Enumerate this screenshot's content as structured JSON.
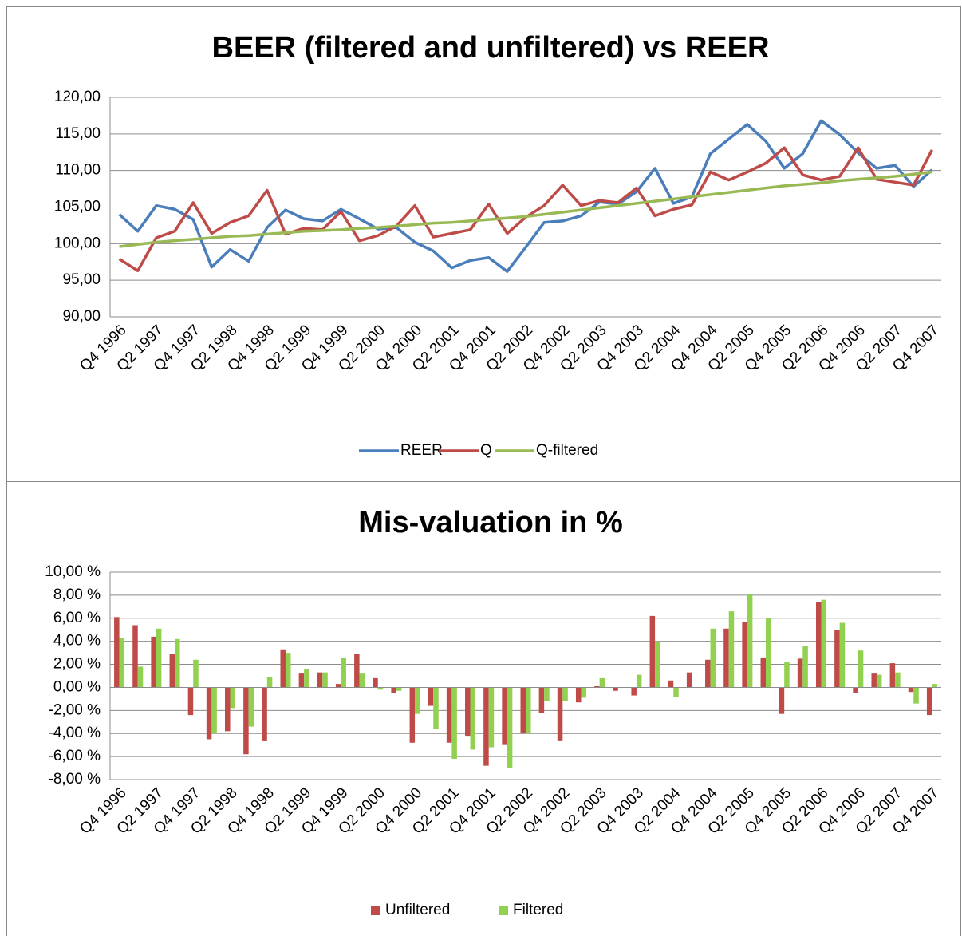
{
  "chart_data": [
    {
      "type": "line",
      "title": "BEER (filtered and unfiltered) vs REER",
      "categories": [
        "Q4 1996",
        null,
        "Q2 1997",
        null,
        "Q4 1997",
        null,
        "Q2 1998",
        null,
        "Q4 1998",
        null,
        "Q2 1999",
        null,
        "Q4 1999",
        null,
        "Q2 2000",
        null,
        "Q4 2000",
        null,
        "Q2 2001",
        null,
        "Q4 2001",
        null,
        "Q2 2002",
        null,
        "Q4 2002",
        null,
        "Q2 2003",
        null,
        "Q4 2003",
        null,
        "Q2 2004",
        null,
        "Q4 2004",
        null,
        "Q2 2005",
        null,
        "Q4 2005",
        null,
        "Q2 2006",
        null,
        "Q4 2006",
        null,
        "Q2 2007",
        null,
        "Q4 2007"
      ],
      "series": [
        {
          "name": "REER",
          "color": "#4a7ebb",
          "values": [
            104,
            101.7,
            105.2,
            104.7,
            103.3,
            96.8,
            99.2,
            97.6,
            102.2,
            104.6,
            103.4,
            103.1,
            104.7,
            103.4,
            102,
            102.2,
            100.2,
            99,
            96.7,
            97.7,
            98.1,
            96.2,
            99.5,
            102.9,
            103.1,
            103.8,
            105.7,
            105.4,
            107.1,
            110.3,
            105.5,
            106.4,
            112.3,
            114.3,
            116.3,
            114,
            110.3,
            112.3,
            116.8,
            114.9,
            112.4,
            110.3,
            110.7,
            107.8,
            110.1
          ]
        },
        {
          "name": "Q",
          "color": "#be4b48",
          "values": [
            97.9,
            96.3,
            100.8,
            101.7,
            105.6,
            101.4,
            102.9,
            103.8,
            107.3,
            101.3,
            102.1,
            101.9,
            104.4,
            100.4,
            101.1,
            102.4,
            105.2,
            100.9,
            101.4,
            101.9,
            105.4,
            101.4,
            103.6,
            105.2,
            108,
            105.2,
            105.9,
            105.6,
            107.6,
            103.8,
            104.7,
            105.3,
            109.8,
            108.7,
            109.8,
            111,
            113.1,
            109.4,
            108.7,
            109.2,
            113.1,
            108.8,
            108.4,
            108,
            112.8
          ]
        },
        {
          "name": "Q-filtered",
          "color": "#98b954",
          "values": [
            99.6,
            99.9,
            100.2,
            100.4,
            100.6,
            100.8,
            101,
            101.1,
            101.3,
            101.5,
            101.7,
            101.8,
            101.9,
            102.1,
            102.2,
            102.4,
            102.6,
            102.8,
            102.9,
            103.1,
            103.3,
            103.5,
            103.7,
            104,
            104.3,
            104.6,
            104.9,
            105.2,
            105.5,
            105.8,
            106.1,
            106.4,
            106.7,
            107,
            107.3,
            107.6,
            107.9,
            108.1,
            108.3,
            108.6,
            108.8,
            109,
            109.2,
            109.5,
            109.8
          ]
        }
      ],
      "ylim": [
        90,
        120
      ],
      "yticks": [
        {
          "value": 90,
          "label": "90,00"
        },
        {
          "value": 95,
          "label": "95,00"
        },
        {
          "value": 100,
          "label": "100,00"
        },
        {
          "value": 105,
          "label": "105,00"
        },
        {
          "value": 110,
          "label": "110,00"
        },
        {
          "value": 115,
          "label": "115,00"
        },
        {
          "value": 120,
          "label": "120,00"
        }
      ],
      "grid": true,
      "legend": "bottom"
    },
    {
      "type": "bar",
      "title": "Mis-valuation in %",
      "categories": [
        "Q4 1996",
        null,
        "Q2 1997",
        null,
        "Q4 1997",
        null,
        "Q2 1998",
        null,
        "Q4 1998",
        null,
        "Q2 1999",
        null,
        "Q4 1999",
        null,
        "Q2 2000",
        null,
        "Q4 2000",
        null,
        "Q2 2001",
        null,
        "Q4 2001",
        null,
        "Q2 2002",
        null,
        "Q4 2002",
        null,
        "Q2 2003",
        null,
        "Q4 2003",
        null,
        "Q2 2004",
        null,
        "Q4 2004",
        null,
        "Q2 2005",
        null,
        "Q4 2005",
        null,
        "Q2 2006",
        null,
        "Q4 2006",
        null,
        "Q2 2007",
        null,
        "Q4 2007"
      ],
      "series": [
        {
          "name": "Unfiltered",
          "color": "#be4b48",
          "values": [
            6.1,
            5.4,
            4.4,
            2.9,
            -2.4,
            -4.5,
            -3.8,
            -5.8,
            -4.6,
            3.3,
            1.2,
            1.3,
            0.3,
            2.9,
            0.8,
            -0.5,
            -4.8,
            -1.6,
            -4.8,
            -4.2,
            -6.8,
            -5,
            -4,
            -2.2,
            -4.6,
            -1.3,
            0.1,
            -0.3,
            -0.7,
            6.2,
            0.6,
            1.3,
            2.4,
            5.1,
            5.7,
            2.6,
            -2.3,
            2.5,
            7.4,
            5,
            -0.5,
            1.2,
            2.1,
            -0.4,
            -2.4
          ]
        },
        {
          "name": "Filtered",
          "color": "#92d050",
          "values": [
            4.3,
            1.8,
            5.1,
            4.2,
            2.4,
            -4,
            -1.8,
            -3.4,
            0.9,
            3,
            1.6,
            1.3,
            2.6,
            1.2,
            -0.2,
            -0.3,
            -2.3,
            -3.6,
            -6.2,
            -5.4,
            -5.2,
            -7,
            -4,
            -1.2,
            -1.2,
            -0.9,
            0.8,
            0,
            1.1,
            4,
            -0.8,
            0,
            5.1,
            6.6,
            8.1,
            6,
            2.2,
            3.6,
            7.6,
            5.6,
            3.2,
            1.1,
            1.3,
            -1.4,
            0.3
          ]
        }
      ],
      "ylim": [
        -8,
        10
      ],
      "yticks": [
        {
          "value": -8,
          "label": "-8,00 %"
        },
        {
          "value": -6,
          "label": "-6,00 %"
        },
        {
          "value": -4,
          "label": "-4,00 %"
        },
        {
          "value": -2,
          "label": "-2,00 %"
        },
        {
          "value": 0,
          "label": "0,00 %"
        },
        {
          "value": 2,
          "label": "2,00 %"
        },
        {
          "value": 4,
          "label": "4,00 %"
        },
        {
          "value": 6,
          "label": "6,00 %"
        },
        {
          "value": 8,
          "label": "8,00 %"
        },
        {
          "value": 10,
          "label": "10,00 %"
        }
      ],
      "grid": true,
      "legend": "bottom"
    }
  ]
}
